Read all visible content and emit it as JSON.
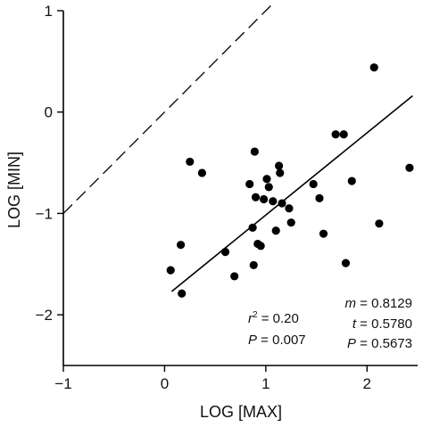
{
  "chart_data": {
    "type": "scatter",
    "title": "",
    "xlabel": "LOG [MAX]",
    "ylabel": "LOG [MIN]",
    "xlim": [
      -1,
      2.5
    ],
    "ylim": [
      -2.5,
      1
    ],
    "xticks": [
      -1,
      0,
      1,
      2
    ],
    "yticks": [
      -2,
      -1,
      0,
      1
    ],
    "xtick_labels": [
      "−1",
      "0",
      "1",
      "2"
    ],
    "ytick_labels": [
      "−2",
      "−1",
      "0",
      "1"
    ],
    "grid": false,
    "series": [
      {
        "points": [
          [
            0.06,
            -1.56
          ],
          [
            0.16,
            -1.31
          ],
          [
            0.17,
            -1.79
          ],
          [
            0.25,
            -0.49
          ],
          [
            0.37,
            -0.6
          ],
          [
            0.6,
            -1.38
          ],
          [
            0.69,
            -1.62
          ],
          [
            0.84,
            -0.71
          ],
          [
            0.87,
            -1.14
          ],
          [
            0.88,
            -1.51
          ],
          [
            0.89,
            -0.39
          ],
          [
            0.9,
            -0.84
          ],
          [
            0.92,
            -1.3
          ],
          [
            0.95,
            -1.32
          ],
          [
            0.98,
            -0.86
          ],
          [
            1.01,
            -0.66
          ],
          [
            1.03,
            -0.74
          ],
          [
            1.07,
            -0.88
          ],
          [
            1.1,
            -1.17
          ],
          [
            1.13,
            -0.53
          ],
          [
            1.14,
            -0.6
          ],
          [
            1.16,
            -0.9
          ],
          [
            1.23,
            -0.95
          ],
          [
            1.25,
            -1.09
          ],
          [
            1.47,
            -0.71
          ],
          [
            1.53,
            -0.85
          ],
          [
            1.57,
            -1.2
          ],
          [
            1.69,
            -0.22
          ],
          [
            1.77,
            -0.22
          ],
          [
            1.79,
            -1.49
          ],
          [
            1.85,
            -0.68
          ],
          [
            2.07,
            0.44
          ],
          [
            2.12,
            -1.1
          ],
          [
            2.42,
            -0.55
          ]
        ]
      }
    ],
    "fit_line": {
      "x": [
        0.07,
        2.45
      ],
      "y": [
        -1.77,
        0.16
      ],
      "style": "solid"
    },
    "identity_line": {
      "x": [
        -1,
        1.05
      ],
      "y": [
        -1,
        1.05
      ],
      "style": "dashed"
    },
    "annotations": {
      "left": [
        {
          "var": "r",
          "sup": "2",
          "rest": " = 0.20"
        },
        {
          "var": "P",
          "sup": "",
          "rest": " = 0.007"
        }
      ],
      "right": [
        {
          "var": "m",
          "sup": "",
          "rest": " = 0.8129"
        },
        {
          "var": "t",
          "sup": "",
          "rest": " = 0.5780"
        },
        {
          "var": "P",
          "sup": "",
          "rest": " = 0.5673"
        }
      ]
    }
  }
}
